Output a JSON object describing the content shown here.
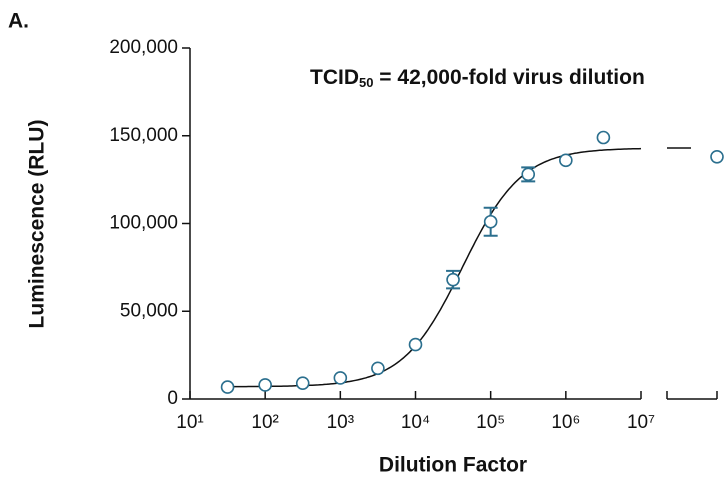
{
  "panel_label": "A.",
  "chart_data": {
    "type": "scatter",
    "annotation": {
      "main": "TCID",
      "sub": "50",
      "rest": " = 42,000-fold virus dilution"
    },
    "x_label": "Dilution Factor",
    "y_label": "Luminescence (RLU)",
    "log_x": true,
    "xlim": [
      10,
      10000000
    ],
    "xticks": [
      {
        "value": 10,
        "label": "10¹"
      },
      {
        "value": 100,
        "label": "10²"
      },
      {
        "value": 1000,
        "label": "10³"
      },
      {
        "value": 10000,
        "label": "10⁴"
      },
      {
        "value": 100000,
        "label": "10⁵"
      },
      {
        "value": 1000000,
        "label": "10⁶"
      },
      {
        "value": 10000000,
        "label": "10⁷"
      }
    ],
    "ylim": [
      0,
      200000
    ],
    "yticks": [
      {
        "value": 0,
        "label": "0"
      },
      {
        "value": 50000,
        "label": "50,000"
      },
      {
        "value": 100000,
        "label": "100,000"
      },
      {
        "value": 150000,
        "label": "150,000"
      },
      {
        "value": 200000,
        "label": "200,000"
      }
    ],
    "series": [
      {
        "color": "#2b6f8e",
        "x": [
          31.6,
          100,
          316,
          1000,
          3160,
          10000,
          31600,
          100000,
          316000,
          1000000,
          3160000
        ],
        "values": [
          6800,
          8000,
          9000,
          12000,
          17500,
          31000,
          68000,
          101000,
          128000,
          136000,
          149000
        ],
        "errors": [
          null,
          null,
          null,
          null,
          null,
          null,
          5000,
          8000,
          4000,
          null,
          null
        ]
      },
      {
        "color": "#2b6f8e",
        "values": [
          138000
        ]
      }
    ],
    "fit": {
      "bottom": 7000,
      "top": 143000,
      "ec50": 42000,
      "hill": 1.1,
      "color": "#111111"
    }
  }
}
